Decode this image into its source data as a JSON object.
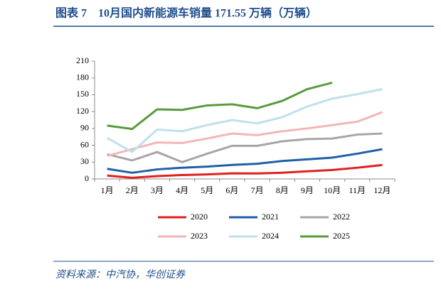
{
  "chart_data": {
    "type": "line",
    "title": "图表 7　10月国内新能源车销量 171.55 万辆（万辆）",
    "source": "资料来源：中汽协，华创证券",
    "categories": [
      "1月",
      "2月",
      "3月",
      "4月",
      "5月",
      "6月",
      "7月",
      "8月",
      "9月",
      "10月",
      "11月",
      "12月"
    ],
    "series": [
      {
        "name": "2020",
        "color": "#e0201f",
        "values": [
          6,
          2,
          5,
          7,
          8,
          10,
          9.8,
          11,
          13.6,
          16,
          20,
          24.8
        ]
      },
      {
        "name": "2021",
        "color": "#1f5fa8",
        "values": [
          18,
          11,
          17,
          20,
          22,
          25,
          27,
          32,
          35,
          38,
          45,
          53
        ]
      },
      {
        "name": "2022",
        "color": "#a6a6a6",
        "values": [
          44,
          33,
          48,
          30,
          45,
          59,
          59,
          67,
          71,
          72,
          79,
          81
        ]
      },
      {
        "name": "2023",
        "color": "#f2b6b6",
        "values": [
          41,
          53,
          65,
          64,
          72,
          81,
          78,
          85,
          90,
          96,
          102,
          119
        ]
      },
      {
        "name": "2024",
        "color": "#bfe0ec",
        "values": [
          73,
          48,
          88,
          85,
          96,
          105,
          99,
          110,
          129,
          143,
          151,
          160
        ]
      },
      {
        "name": "2025",
        "color": "#5a9a3c",
        "values": [
          95,
          89,
          124,
          123,
          131,
          133,
          126,
          139,
          160,
          171.55,
          null,
          null
        ]
      }
    ],
    "ylim": [
      0,
      210
    ],
    "yticks": [
      0,
      30,
      60,
      90,
      120,
      150,
      180,
      210
    ],
    "grid": false
  }
}
